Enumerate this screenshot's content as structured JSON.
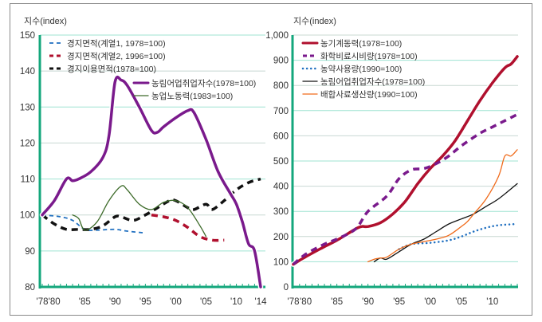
{
  "chart_data": [
    {
      "type": "line",
      "ylabel": "지수(index)",
      "ylim": [
        80,
        150
      ],
      "yticks": [
        80,
        90,
        100,
        110,
        120,
        130,
        140,
        150
      ],
      "xlim": [
        1978,
        2014
      ],
      "xticks": [
        {
          "v": 1978,
          "label": "'78"
        },
        {
          "v": 1980,
          "label": "'80"
        },
        {
          "v": 1985,
          "label": "'85"
        },
        {
          "v": 1990,
          "label": "'90"
        },
        {
          "v": 1995,
          "label": "'95"
        },
        {
          "v": 2000,
          "label": "'00"
        },
        {
          "v": 2005,
          "label": "'05"
        },
        {
          "v": 2010,
          "label": "'10"
        },
        {
          "v": 2014,
          "label": "'14"
        }
      ],
      "series": [
        {
          "name": "경지면적(계열1, 1978=100)",
          "color": "#1f6fc0",
          "style": "dash-thin",
          "x": [
            1978,
            1981,
            1983,
            1985,
            1987,
            1990,
            1992,
            1995
          ],
          "y": [
            100,
            99.5,
            98.5,
            96,
            95.8,
            96,
            95.5,
            95
          ]
        },
        {
          "name": "경지면적(계열2, 1996=100)",
          "color": "#b0102e",
          "style": "dash-thick",
          "x": [
            1996,
            1998,
            2000,
            2002,
            2004,
            2006,
            2008
          ],
          "y": [
            100,
            99.5,
            98.5,
            96.5,
            94,
            93,
            93
          ]
        },
        {
          "name": "경지이용면적(1978=100)",
          "color": "#111111",
          "style": "dash-thick",
          "x": [
            1978,
            1980,
            1982,
            1984,
            1986,
            1988,
            1990,
            1991,
            1993,
            1995,
            1997,
            1999,
            2000,
            2002,
            2003,
            2005,
            2006,
            2008,
            2010,
            2012,
            2014
          ],
          "y": [
            100,
            97.5,
            96,
            96,
            96,
            97,
            99.5,
            99.5,
            98.5,
            100,
            102,
            104,
            104,
            102,
            101.5,
            103,
            101.5,
            104,
            107,
            109,
            110
          ]
        },
        {
          "name": "농림어업취업자수(1978=100)",
          "color": "#7a1a8c",
          "style": "solid-thick",
          "x": [
            1978,
            1980,
            1982,
            1983,
            1984,
            1986,
            1988,
            1989,
            1990,
            1991,
            1992,
            1994,
            1996,
            1997,
            1998,
            2000,
            2002,
            2003,
            2005,
            2007,
            2009,
            2010,
            2011,
            2012,
            2013,
            2014
          ],
          "y": [
            100,
            104,
            110,
            109.5,
            110,
            112,
            116,
            122,
            137,
            137.5,
            136,
            130,
            123.5,
            123,
            124.5,
            127,
            129,
            128.5,
            121,
            112,
            106,
            103,
            98,
            92,
            90,
            80
          ]
        },
        {
          "name": "농업노동력(1983=100)",
          "color": "#3d6b2a",
          "style": "solid-thin",
          "x": [
            1983,
            1984,
            1985,
            1987,
            1989,
            1991,
            1992,
            1994,
            1996,
            1998,
            2000,
            2002,
            2004,
            2005
          ],
          "y": [
            100,
            99,
            95.8,
            98,
            104,
            108,
            107,
            103,
            101.5,
            103.5,
            104,
            102,
            97,
            94
          ]
        }
      ]
    },
    {
      "type": "line",
      "ylabel": "지수(index)",
      "ylim": [
        0,
        1000
      ],
      "yticks": [
        {
          "v": 0,
          "label": "0"
        },
        {
          "v": 100,
          "label": "100"
        },
        {
          "v": 200,
          "label": "200"
        },
        {
          "v": 300,
          "label": "300"
        },
        {
          "v": 400,
          "label": "400"
        },
        {
          "v": 500,
          "label": "500"
        },
        {
          "v": 600,
          "label": "600"
        },
        {
          "v": 700,
          "label": "700"
        },
        {
          "v": 800,
          "label": "800"
        },
        {
          "v": 900,
          "label": "900"
        },
        {
          "v": 1000,
          "label": "1,000"
        }
      ],
      "xlim": [
        1978,
        2014
      ],
      "xticks": [
        {
          "v": 1978,
          "label": "'78"
        },
        {
          "v": 1980,
          "label": "'80"
        },
        {
          "v": 1985,
          "label": "'85"
        },
        {
          "v": 1990,
          "label": "'90"
        },
        {
          "v": 1995,
          "label": "'95"
        },
        {
          "v": 2000,
          "label": "'00"
        },
        {
          "v": 2005,
          "label": "'05"
        },
        {
          "v": 2010,
          "label": "'10"
        }
      ],
      "series": [
        {
          "name": "농기계동력(1978=100)",
          "color": "#b0102e",
          "style": "solid-thick",
          "x": [
            1978,
            1980,
            1983,
            1985,
            1988,
            1989,
            1990,
            1992,
            1994,
            1996,
            1998,
            2000,
            2002,
            2004,
            2006,
            2008,
            2010,
            2012,
            2013,
            2014
          ],
          "y": [
            90,
            120,
            160,
            185,
            230,
            240,
            240,
            255,
            290,
            340,
            410,
            470,
            520,
            580,
            660,
            740,
            810,
            870,
            885,
            915
          ]
        },
        {
          "name": "화학비료시비량(1978=100)",
          "color": "#7a1a8c",
          "style": "dash-thick",
          "x": [
            1978,
            1980,
            1983,
            1985,
            1988,
            1990,
            1993,
            1995,
            1997,
            1999,
            2001,
            2003,
            2005,
            2008,
            2010,
            2012,
            2014
          ],
          "y": [
            90,
            130,
            170,
            190,
            230,
            300,
            360,
            430,
            465,
            470,
            490,
            520,
            560,
            610,
            635,
            660,
            685
          ]
        },
        {
          "name": "농약사용량(1990=100)",
          "color": "#1f6fc0",
          "style": "dot",
          "x": [
            1995,
            1997,
            2000,
            2003,
            2005,
            2007,
            2009,
            2011,
            2014
          ],
          "y": [
            150,
            170,
            175,
            185,
            200,
            220,
            235,
            245,
            250
          ]
        },
        {
          "name": "농림어업취업자수(1978=100)",
          "color": "#111111",
          "style": "solid-thin",
          "x": [
            1991,
            1992,
            1993,
            1995,
            1997,
            1999,
            2001,
            2003,
            2005,
            2007,
            2009,
            2011,
            2014
          ],
          "y": [
            100,
            115,
            110,
            140,
            170,
            190,
            220,
            250,
            270,
            290,
            320,
            350,
            410
          ]
        },
        {
          "name": "배합사료생산량(1990=100)",
          "color": "#f06a1a",
          "style": "solid-thin",
          "x": [
            1990,
            1991,
            1992,
            1993,
            1995,
            1997,
            1999,
            2001,
            2003,
            2005,
            2006,
            2007,
            2009,
            2011,
            2012,
            2013,
            2014
          ],
          "y": [
            100,
            110,
            115,
            118,
            150,
            170,
            180,
            190,
            205,
            240,
            260,
            290,
            350,
            440,
            520,
            520,
            545
          ]
        }
      ]
    }
  ]
}
